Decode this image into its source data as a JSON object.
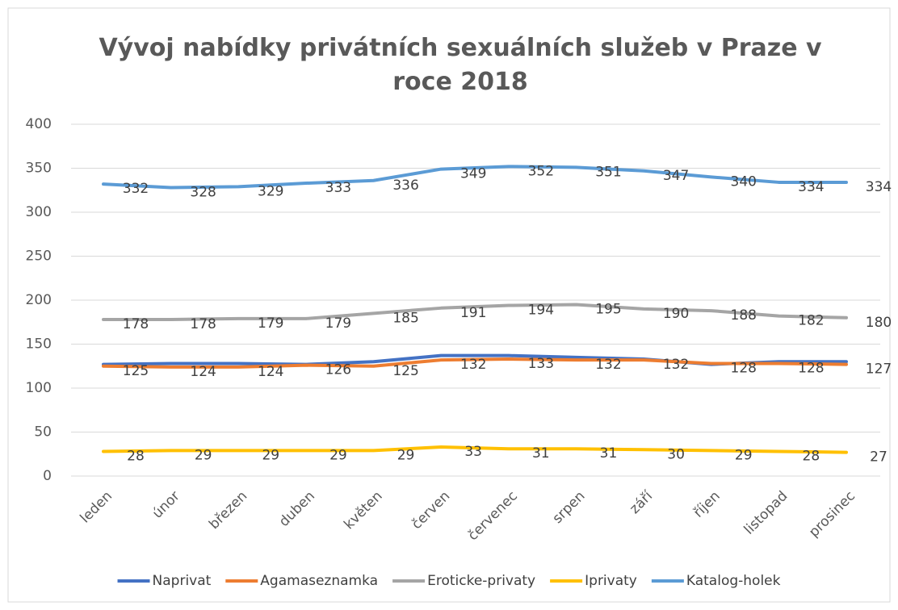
{
  "chart_data": {
    "type": "line",
    "title": "Vývoj nabídky privátních sexuálních služeb v Praze v roce 2018",
    "categories": [
      "leden",
      "únor",
      "březen",
      "duben",
      "květen",
      "červen",
      "červenec",
      "srpen",
      "září",
      "říjen",
      "listopad",
      "prosinec"
    ],
    "series": [
      {
        "name": "Naprivat",
        "color": "#4472c4",
        "values": [
          127,
          128,
          128,
          127,
          130,
          137,
          137,
          135,
          133,
          127,
          130,
          130
        ]
      },
      {
        "name": "Agamaseznamka",
        "color": "#ed7d31",
        "values": [
          125,
          124,
          124,
          126,
          125,
          132,
          133,
          132,
          132,
          128,
          128,
          127
        ],
        "data_labels": true
      },
      {
        "name": "Eroticke-privaty",
        "color": "#a5a5a5",
        "values": [
          178,
          178,
          179,
          179,
          185,
          191,
          194,
          195,
          190,
          188,
          182,
          180
        ],
        "data_labels": true
      },
      {
        "name": "Iprivaty",
        "color": "#ffc000",
        "values": [
          28,
          29,
          29,
          29,
          29,
          33,
          31,
          31,
          30,
          29,
          28,
          27
        ],
        "data_labels": true
      },
      {
        "name": "Katalog-holek",
        "color": "#5b9bd5",
        "values": [
          332,
          328,
          329,
          333,
          336,
          349,
          352,
          351,
          347,
          340,
          334,
          334
        ],
        "data_labels": true
      }
    ],
    "ylim": [
      0,
      400
    ],
    "yticks": [
      0,
      50,
      100,
      150,
      200,
      250,
      300,
      350,
      400
    ],
    "grid": true,
    "legend": "bottom"
  }
}
